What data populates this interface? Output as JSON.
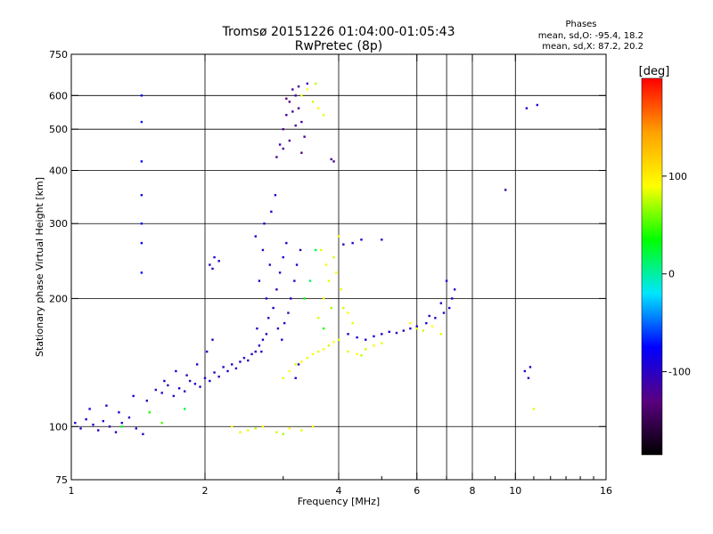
{
  "header": {
    "title_line1": "Tromsø 20151226 01:04:00-01:05:43",
    "title_line2": "RwPretec (8p)",
    "phases_title": "Phases",
    "phases_line1": "mean, sd,O: -95.4, 18.2",
    "phases_line2": "mean, sd,X:  87.2, 20.2"
  },
  "chart_data": {
    "type": "scatter",
    "title": "Tromsø 20151226 01:04:00-01:05:43",
    "subtitle": "RwPretec (8p)",
    "xlabel": "Frequency [MHz]",
    "ylabel": "Stationary phase Virtual Height [km]",
    "x_scale": "log",
    "y_scale": "log",
    "xlim": [
      1,
      16
    ],
    "ylim": [
      75,
      750
    ],
    "x_ticks": [
      1,
      2,
      4,
      6,
      8,
      10,
      16
    ],
    "x_tick_labels": [
      "1",
      "2",
      "4",
      "6",
      "8",
      "10",
      "16"
    ],
    "x_gridlines": [
      2,
      4,
      6,
      7,
      8,
      10
    ],
    "y_ticks": [
      75,
      100,
      200,
      300,
      400,
      500,
      600,
      750
    ],
    "y_tick_labels": [
      "75",
      "100",
      "200",
      "300",
      "400",
      "500",
      "600",
      "750"
    ],
    "y_gridlines": [
      100,
      200,
      300,
      400,
      500,
      600
    ],
    "grid": true,
    "colorbar": {
      "label": "[deg]",
      "min": -185,
      "max": 200,
      "ticks": [
        100,
        0,
        -100
      ],
      "tick_labels": [
        "100",
        "0",
        "-100"
      ],
      "colors": [
        "#000000",
        "#5a007f",
        "#0000ff",
        "#00e6ff",
        "#00ff00",
        "#ffff00",
        "#ffa000",
        "#ff0000"
      ]
    },
    "series": [
      {
        "name": "O",
        "phase_mean": -95.4,
        "phase_sd": 18.2,
        "points": [
          [
            1.02,
            102,
            -95
          ],
          [
            1.05,
            99,
            -100
          ],
          [
            1.08,
            104,
            -90
          ],
          [
            1.12,
            101,
            -105
          ],
          [
            1.15,
            98,
            -98
          ],
          [
            1.18,
            103,
            -92
          ],
          [
            1.22,
            100,
            -110
          ],
          [
            1.26,
            97,
            -100
          ],
          [
            1.3,
            102,
            -88
          ],
          [
            1.35,
            105,
            -96
          ],
          [
            1.4,
            99,
            -104
          ],
          [
            1.45,
            96,
            -100
          ],
          [
            1.1,
            110,
            -85
          ],
          [
            1.2,
            112,
            -100
          ],
          [
            1.28,
            108,
            -95
          ],
          [
            1.38,
            118,
            -90
          ],
          [
            1.48,
            115,
            -105
          ],
          [
            1.55,
            122,
            -100
          ],
          [
            1.6,
            120,
            -95
          ],
          [
            1.65,
            125,
            -110
          ],
          [
            1.7,
            118,
            -100
          ],
          [
            1.75,
            123,
            -92
          ],
          [
            1.8,
            121,
            -98
          ],
          [
            1.85,
            128,
            -100
          ],
          [
            1.9,
            126,
            -95
          ],
          [
            1.95,
            124,
            -105
          ],
          [
            2.0,
            130,
            -100
          ],
          [
            2.05,
            128,
            -90
          ],
          [
            2.1,
            134,
            -100
          ],
          [
            2.15,
            131,
            -110
          ],
          [
            2.2,
            138,
            -100
          ],
          [
            2.25,
            135,
            -95
          ],
          [
            2.3,
            140,
            -100
          ],
          [
            2.35,
            137,
            -105
          ],
          [
            2.4,
            142,
            -95
          ],
          [
            2.45,
            145,
            -100
          ],
          [
            2.5,
            143,
            -110
          ],
          [
            2.55,
            148,
            -100
          ],
          [
            2.6,
            150,
            -95
          ],
          [
            2.65,
            155,
            -100
          ],
          [
            2.7,
            160,
            -105
          ],
          [
            2.75,
            165,
            -100
          ],
          [
            1.62,
            128,
            -100
          ],
          [
            1.72,
            135,
            -95
          ],
          [
            1.82,
            132,
            -110
          ],
          [
            1.92,
            140,
            -100
          ],
          [
            2.02,
            150,
            -95
          ],
          [
            2.08,
            160,
            -100
          ],
          [
            1.44,
            300,
            -80
          ],
          [
            1.44,
            270,
            -78
          ],
          [
            1.44,
            350,
            -82
          ],
          [
            1.44,
            420,
            -75
          ],
          [
            1.44,
            520,
            -70
          ],
          [
            1.44,
            600,
            -78
          ],
          [
            1.44,
            230,
            -75
          ],
          [
            2.05,
            240,
            -100
          ],
          [
            2.1,
            250,
            -95
          ],
          [
            2.15,
            245,
            -105
          ],
          [
            2.08,
            235,
            -100
          ],
          [
            2.6,
            280,
            -95
          ],
          [
            2.7,
            260,
            -100
          ],
          [
            2.8,
            240,
            -105
          ],
          [
            2.65,
            220,
            -100
          ],
          [
            2.75,
            200,
            -90
          ],
          [
            2.85,
            190,
            -100
          ],
          [
            2.9,
            210,
            -110
          ],
          [
            2.95,
            230,
            -100
          ],
          [
            3.0,
            250,
            -95
          ],
          [
            3.05,
            270,
            -100
          ],
          [
            2.72,
            300,
            -100
          ],
          [
            2.82,
            320,
            -95
          ],
          [
            2.88,
            350,
            -100
          ],
          [
            2.78,
            180,
            -105
          ],
          [
            2.92,
            170,
            -100
          ],
          [
            2.98,
            160,
            -95
          ],
          [
            3.02,
            175,
            -100
          ],
          [
            3.08,
            185,
            -110
          ],
          [
            3.12,
            200,
            -100
          ],
          [
            3.18,
            220,
            -95
          ],
          [
            3.22,
            240,
            -100
          ],
          [
            3.28,
            260,
            -105
          ],
          [
            2.62,
            170,
            -100
          ],
          [
            2.68,
            150,
            -95
          ],
          [
            3.2,
            130,
            -95
          ],
          [
            3.25,
            140,
            -100
          ],
          [
            2.9,
            430,
            -120
          ],
          [
            2.95,
            460,
            -115
          ],
          [
            3.0,
            500,
            -125
          ],
          [
            3.05,
            540,
            -118
          ],
          [
            3.1,
            580,
            -130
          ],
          [
            3.15,
            620,
            -120
          ],
          [
            3.2,
            600,
            -115
          ],
          [
            3.25,
            560,
            -125
          ],
          [
            3.3,
            520,
            -120
          ],
          [
            3.35,
            480,
            -118
          ],
          [
            3.0,
            450,
            -122
          ],
          [
            3.1,
            470,
            -120
          ],
          [
            3.2,
            510,
            -125
          ],
          [
            3.15,
            550,
            -118
          ],
          [
            3.05,
            590,
            -130
          ],
          [
            3.25,
            630,
            -120
          ],
          [
            3.4,
            640,
            -110
          ],
          [
            3.3,
            440,
            -125
          ],
          [
            3.85,
            425,
            -120
          ],
          [
            3.9,
            420,
            -118
          ],
          [
            4.2,
            165,
            -100
          ],
          [
            4.4,
            162,
            -95
          ],
          [
            4.6,
            160,
            -100
          ],
          [
            4.8,
            163,
            -90
          ],
          [
            5.0,
            165,
            -100
          ],
          [
            5.2,
            167,
            -95
          ],
          [
            5.4,
            166,
            -100
          ],
          [
            5.6,
            168,
            -105
          ],
          [
            5.8,
            170,
            -95
          ],
          [
            6.0,
            172,
            -100
          ],
          [
            4.3,
            270,
            -100
          ],
          [
            4.5,
            275,
            -95
          ],
          [
            4.1,
            268,
            -105
          ],
          [
            5.0,
            275,
            -100
          ],
          [
            6.3,
            175,
            -90
          ],
          [
            6.6,
            180,
            -100
          ],
          [
            6.9,
            185,
            -95
          ],
          [
            7.1,
            190,
            -100
          ],
          [
            7.3,
            210,
            -100
          ],
          [
            7.0,
            220,
            -95
          ],
          [
            6.8,
            195,
            -100
          ],
          [
            6.4,
            182,
            -105
          ],
          [
            7.2,
            200,
            -95
          ],
          [
            9.5,
            360,
            -110
          ],
          [
            10.5,
            135,
            -100
          ],
          [
            10.7,
            130,
            -95
          ],
          [
            10.8,
            138,
            -100
          ],
          [
            11.2,
            570,
            -90
          ],
          [
            10.6,
            560,
            -95
          ]
        ]
      },
      {
        "name": "X",
        "phase_mean": 87.2,
        "phase_sd": 20.2,
        "points": [
          [
            2.3,
            100,
            90
          ],
          [
            2.5,
            98,
            85
          ],
          [
            2.7,
            100,
            95
          ],
          [
            2.9,
            97,
            80
          ],
          [
            3.1,
            99,
            90
          ],
          [
            3.3,
            98,
            85
          ],
          [
            2.4,
            97,
            100
          ],
          [
            2.6,
            99,
            75
          ],
          [
            3.5,
            100,
            95
          ],
          [
            3.0,
            96,
            70
          ],
          [
            3.0,
            130,
            85
          ],
          [
            3.1,
            135,
            90
          ],
          [
            3.2,
            140,
            80
          ],
          [
            3.3,
            142,
            95
          ],
          [
            3.4,
            145,
            85
          ],
          [
            3.5,
            148,
            90
          ],
          [
            3.6,
            150,
            85
          ],
          [
            3.7,
            152,
            95
          ],
          [
            3.8,
            155,
            80
          ],
          [
            3.9,
            158,
            90
          ],
          [
            4.0,
            160,
            85
          ],
          [
            3.6,
            180,
            80
          ],
          [
            3.7,
            200,
            90
          ],
          [
            3.8,
            220,
            85
          ],
          [
            3.9,
            250,
            80
          ],
          [
            4.0,
            280,
            95
          ],
          [
            3.95,
            230,
            90
          ],
          [
            4.05,
            210,
            85
          ],
          [
            4.1,
            190,
            80
          ],
          [
            4.2,
            185,
            90
          ],
          [
            4.3,
            175,
            85
          ],
          [
            3.75,
            240,
            95
          ],
          [
            3.65,
            260,
            85
          ],
          [
            3.85,
            190,
            70
          ],
          [
            3.7,
            170,
            40
          ],
          [
            3.55,
            260,
            20
          ],
          [
            3.45,
            220,
            15
          ],
          [
            3.35,
            200,
            30
          ],
          [
            4.2,
            150,
            85
          ],
          [
            4.4,
            148,
            90
          ],
          [
            4.6,
            152,
            80
          ],
          [
            4.8,
            155,
            95
          ],
          [
            5.0,
            157,
            85
          ],
          [
            4.5,
            147,
            75
          ],
          [
            6.0,
            170,
            85
          ],
          [
            6.2,
            168,
            80
          ],
          [
            6.5,
            172,
            90
          ],
          [
            6.8,
            165,
            85
          ],
          [
            5.8,
            175,
            95
          ],
          [
            3.3,
            600,
            85
          ],
          [
            3.4,
            620,
            90
          ],
          [
            3.5,
            580,
            80
          ],
          [
            3.6,
            560,
            95
          ],
          [
            3.7,
            540,
            85
          ],
          [
            3.55,
            640,
            75
          ],
          [
            1.3,
            100,
            30
          ],
          [
            1.6,
            102,
            50
          ],
          [
            1.8,
            110,
            20
          ],
          [
            1.5,
            108,
            40
          ],
          [
            11.0,
            110,
            85
          ]
        ]
      }
    ]
  }
}
